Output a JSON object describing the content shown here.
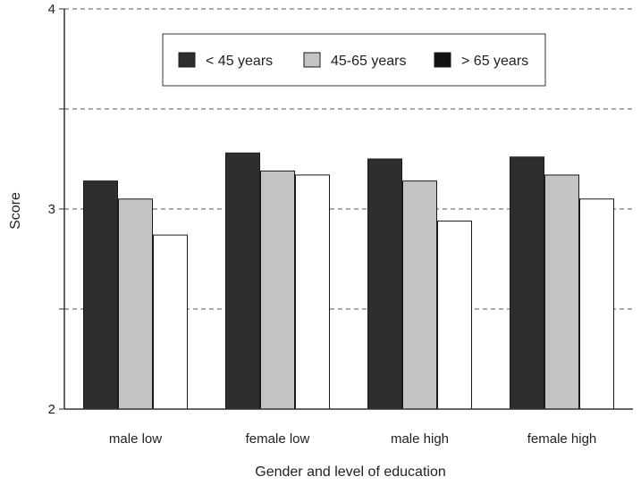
{
  "chart_data": {
    "type": "bar",
    "title": "",
    "xlabel": "Gender and level of education",
    "ylabel": "Score",
    "categories": [
      "male low",
      "female low",
      "male high",
      "female high"
    ],
    "series": [
      {
        "name": "< 45 years",
        "values": [
          3.14,
          3.28,
          3.25,
          3.26
        ],
        "color": "#2e2e2e"
      },
      {
        "name": "45-65 years",
        "values": [
          3.05,
          3.19,
          3.14,
          3.17
        ],
        "color": "#c4c4c4"
      },
      {
        "name": "> 65 years",
        "values": [
          2.87,
          3.17,
          2.94,
          3.05
        ],
        "color": "#ffffff"
      }
    ],
    "ylim": [
      2,
      4
    ],
    "yticks": [
      {
        "value": 2,
        "label": "2"
      },
      {
        "value": 2.5,
        "label": ""
      },
      {
        "value": 3,
        "label": "3"
      },
      {
        "value": 3.5,
        "label": ""
      },
      {
        "value": 4,
        "label": "4"
      }
    ],
    "grid": true,
    "legend_position": "top-center"
  }
}
